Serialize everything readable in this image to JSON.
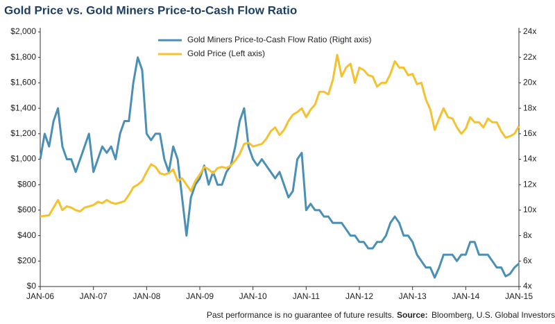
{
  "chart_data": {
    "type": "line",
    "title": "Gold Price vs. Gold Miners Price-to-Cash Flow Ratio",
    "footnote": "Past performance is no guarantee of future results.",
    "source_label": "Source:",
    "source": "Bloomberg, U.S. Global Investors",
    "x": [
      "2006-01",
      "2006-02",
      "2006-03",
      "2006-04",
      "2006-05",
      "2006-06",
      "2006-07",
      "2006-08",
      "2006-09",
      "2006-10",
      "2006-11",
      "2006-12",
      "2007-01",
      "2007-02",
      "2007-03",
      "2007-04",
      "2007-05",
      "2007-06",
      "2007-07",
      "2007-08",
      "2007-09",
      "2007-10",
      "2007-11",
      "2007-12",
      "2008-01",
      "2008-02",
      "2008-03",
      "2008-04",
      "2008-05",
      "2008-06",
      "2008-07",
      "2008-08",
      "2008-09",
      "2008-10",
      "2008-11",
      "2008-12",
      "2009-01",
      "2009-02",
      "2009-03",
      "2009-04",
      "2009-05",
      "2009-06",
      "2009-07",
      "2009-08",
      "2009-09",
      "2009-10",
      "2009-11",
      "2009-12",
      "2010-01",
      "2010-02",
      "2010-03",
      "2010-04",
      "2010-05",
      "2010-06",
      "2010-07",
      "2010-08",
      "2010-09",
      "2010-10",
      "2010-11",
      "2010-12",
      "2011-01",
      "2011-02",
      "2011-03",
      "2011-04",
      "2011-05",
      "2011-06",
      "2011-07",
      "2011-08",
      "2011-09",
      "2011-10",
      "2011-11",
      "2011-12",
      "2012-01",
      "2012-02",
      "2012-03",
      "2012-04",
      "2012-05",
      "2012-06",
      "2012-07",
      "2012-08",
      "2012-09",
      "2012-10",
      "2012-11",
      "2012-12",
      "2013-01",
      "2013-02",
      "2013-03",
      "2013-04",
      "2013-05",
      "2013-06",
      "2013-07",
      "2013-08",
      "2013-09",
      "2013-10",
      "2013-11",
      "2013-12",
      "2014-01",
      "2014-02",
      "2014-03",
      "2014-04",
      "2014-05",
      "2014-06",
      "2014-07",
      "2014-08",
      "2014-09",
      "2014-10",
      "2014-11",
      "2014-12",
      "2015-01"
    ],
    "series": [
      {
        "name": "Gold Miners Price-to-Cash Flow Ratio (Right axis)",
        "color": "#4a8fb5",
        "axis": "y2",
        "values": [
          14,
          16,
          15,
          17,
          18,
          15,
          14,
          14,
          13,
          14,
          15,
          16,
          13,
          14,
          15,
          14.5,
          15,
          14,
          16,
          17,
          17,
          20,
          22,
          21,
          16,
          15.5,
          16,
          16,
          14,
          13,
          15,
          14,
          11,
          8,
          11,
          12,
          12.5,
          13.5,
          12,
          13,
          12,
          12,
          13,
          13.5,
          15,
          17,
          18,
          15,
          14,
          13.5,
          14,
          13.5,
          13,
          12.5,
          13,
          12,
          11,
          11.5,
          14,
          14.5,
          10,
          10.5,
          10,
          10,
          9.5,
          9.5,
          9,
          9,
          9,
          8.5,
          8,
          8,
          7.5,
          7.5,
          7,
          7,
          7.5,
          7.5,
          8,
          9,
          9.5,
          9,
          8,
          8,
          7.5,
          6.5,
          6,
          5.5,
          5.5,
          4.7,
          5.5,
          6.5,
          6.5,
          6.5,
          6,
          6.5,
          6.5,
          7.5,
          7.5,
          6.5,
          6.5,
          6.5,
          6,
          5.5,
          5.5,
          4.8,
          5,
          5.5,
          5.8
        ]
      },
      {
        "name": "Gold Price (Left axis)",
        "color": "#f5c12e",
        "values": [
          550,
          555,
          560,
          620,
          680,
          600,
          630,
          620,
          600,
          590,
          620,
          630,
          640,
          665,
          655,
          680,
          660,
          650,
          660,
          670,
          720,
          780,
          800,
          830,
          900,
          960,
          940,
          890,
          880,
          890,
          920,
          830,
          850,
          800,
          750,
          830,
          880,
          940,
          920,
          890,
          930,
          940,
          930,
          950,
          990,
          1040,
          1120,
          1130,
          1100,
          1110,
          1120,
          1160,
          1220,
          1250,
          1190,
          1230,
          1300,
          1350,
          1370,
          1400,
          1330,
          1390,
          1430,
          1530,
          1530,
          1510,
          1620,
          1820,
          1650,
          1720,
          1750,
          1600,
          1720,
          1700,
          1660,
          1650,
          1570,
          1600,
          1600,
          1670,
          1770,
          1720,
          1720,
          1660,
          1670,
          1590,
          1600,
          1470,
          1390,
          1230,
          1320,
          1400,
          1330,
          1320,
          1250,
          1200,
          1240,
          1330,
          1290,
          1290,
          1250,
          1320,
          1290,
          1290,
          1220,
          1170,
          1180,
          1200,
          1260
        ]
      }
    ],
    "xlim": [
      "2006-01",
      "2015-01"
    ],
    "xticks": [
      {
        "value": "2006-01",
        "label": "JAN-06"
      },
      {
        "value": "2007-01",
        "label": "JAN-07"
      },
      {
        "value": "2008-01",
        "label": "JAN-08"
      },
      {
        "value": "2009-01",
        "label": "JAN-09"
      },
      {
        "value": "2010-01",
        "label": "JAN-10"
      },
      {
        "value": "2011-01",
        "label": "JAN-11"
      },
      {
        "value": "2012-01",
        "label": "JAN-12"
      },
      {
        "value": "2013-01",
        "label": "JAN-13"
      },
      {
        "value": "2014-01",
        "label": "JAN-14"
      },
      {
        "value": "2015-01",
        "label": "JAN-15"
      }
    ],
    "ylim": [
      0,
      2000
    ],
    "yticks": [
      {
        "value": 0,
        "label": "$0"
      },
      {
        "value": 200,
        "label": "$200"
      },
      {
        "value": 400,
        "label": "$400"
      },
      {
        "value": 600,
        "label": "$600"
      },
      {
        "value": 800,
        "label": "$800"
      },
      {
        "value": 1000,
        "label": "$1,000"
      },
      {
        "value": 1200,
        "label": "$1,200"
      },
      {
        "value": 1400,
        "label": "$1,400"
      },
      {
        "value": 1600,
        "label": "$1,600"
      },
      {
        "value": 1800,
        "label": "$1,800"
      },
      {
        "value": 2000,
        "label": "$2,000"
      }
    ],
    "y2lim": [
      4,
      24
    ],
    "y2ticks": [
      {
        "value": 4,
        "label": "4x"
      },
      {
        "value": 6,
        "label": "6x"
      },
      {
        "value": 8,
        "label": "8x"
      },
      {
        "value": 10,
        "label": "10x"
      },
      {
        "value": 12,
        "label": "12x"
      },
      {
        "value": 14,
        "label": "14x"
      },
      {
        "value": 16,
        "label": "16x"
      },
      {
        "value": 18,
        "label": "18x"
      },
      {
        "value": 20,
        "label": "20x"
      },
      {
        "value": 22,
        "label": "22x"
      },
      {
        "value": 24,
        "label": "24x"
      }
    ],
    "grid": false
  }
}
